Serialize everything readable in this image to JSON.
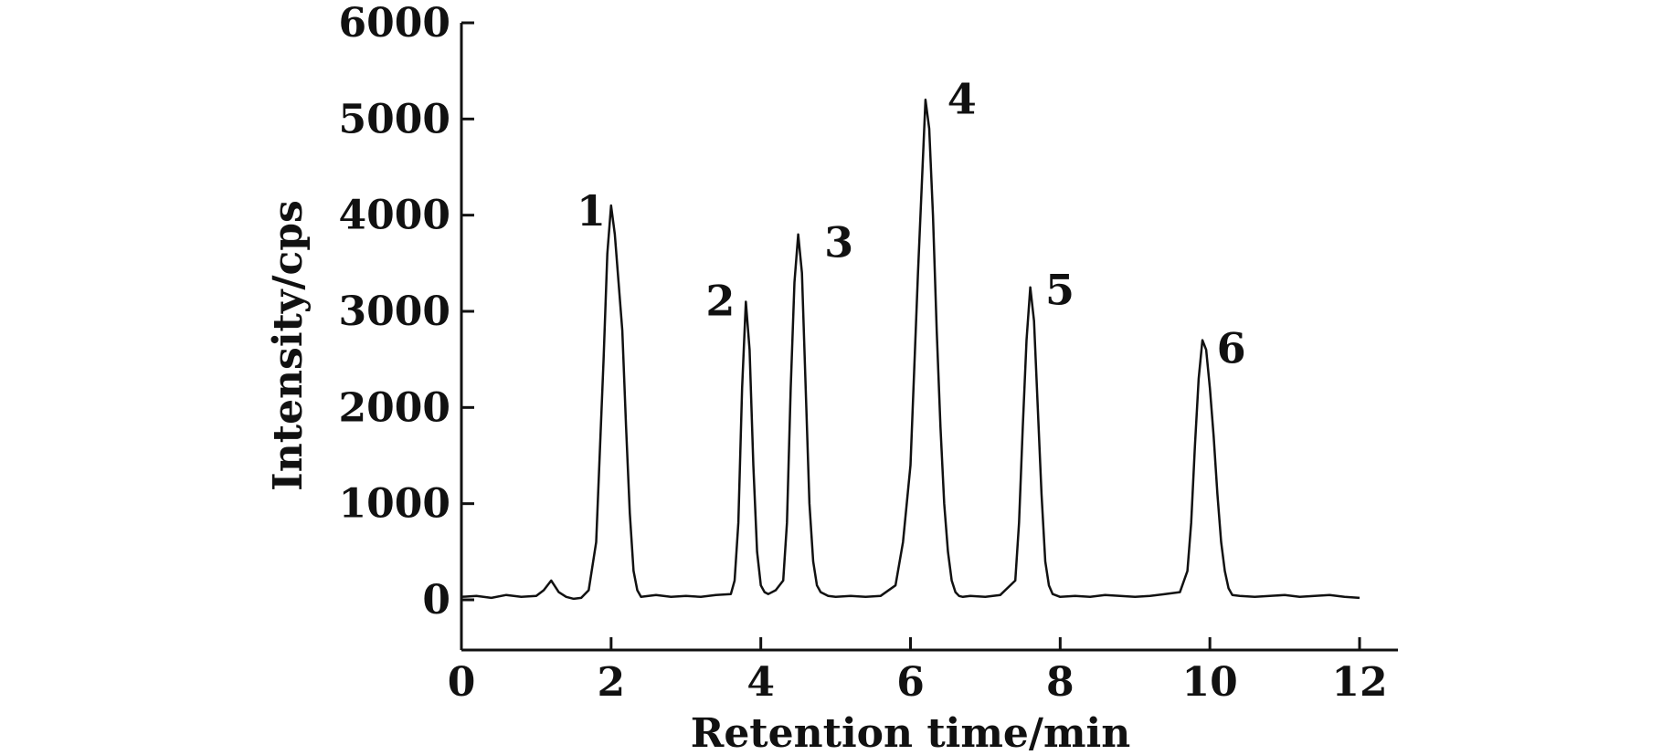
{
  "chart_data": {
    "type": "line",
    "title": "",
    "xlabel": "Retention time/min",
    "ylabel": "Intensity/cps",
    "xlim": [
      0,
      12.5
    ],
    "ylim": [
      -500,
      6000
    ],
    "xticks": [
      0,
      2,
      4,
      6,
      8,
      10,
      12
    ],
    "yticks": [
      0,
      1000,
      2000,
      3000,
      4000,
      5000,
      6000
    ],
    "xtick_labels": [
      "0",
      "2",
      "4",
      "6",
      "8",
      "10",
      "12"
    ],
    "ytick_labels": [
      "0",
      "1000",
      "2000",
      "3000",
      "4000",
      "5000",
      "6000"
    ],
    "grid": false,
    "series": [
      {
        "x": [
          0,
          0.2,
          0.4,
          0.6,
          0.8,
          1.0,
          1.1,
          1.2,
          1.3,
          1.4,
          1.5,
          1.6,
          1.7,
          1.8,
          1.9,
          1.95,
          2.0,
          2.05,
          2.1,
          2.15,
          2.2,
          2.25,
          2.3,
          2.35,
          2.4,
          2.5,
          2.6,
          2.8,
          3.0,
          3.2,
          3.4,
          3.6,
          3.65,
          3.7,
          3.75,
          3.8,
          3.85,
          3.9,
          3.95,
          4.0,
          4.05,
          4.1,
          4.2,
          4.3,
          4.35,
          4.4,
          4.45,
          4.5,
          4.55,
          4.6,
          4.65,
          4.7,
          4.75,
          4.8,
          4.9,
          5.0,
          5.2,
          5.4,
          5.6,
          5.8,
          5.9,
          6.0,
          6.05,
          6.1,
          6.15,
          6.2,
          6.25,
          6.3,
          6.35,
          6.4,
          6.45,
          6.5,
          6.55,
          6.6,
          6.65,
          6.7,
          6.8,
          7.0,
          7.2,
          7.4,
          7.45,
          7.5,
          7.55,
          7.6,
          7.65,
          7.7,
          7.75,
          7.8,
          7.85,
          7.9,
          8.0,
          8.2,
          8.4,
          8.6,
          8.8,
          9.0,
          9.2,
          9.4,
          9.6,
          9.7,
          9.75,
          9.8,
          9.85,
          9.9,
          9.95,
          10.0,
          10.05,
          10.1,
          10.15,
          10.2,
          10.25,
          10.3,
          10.4,
          10.6,
          10.8,
          11.0,
          11.2,
          11.4,
          11.6,
          11.8,
          12.0
        ],
        "y": [
          30,
          40,
          20,
          50,
          30,
          40,
          100,
          200,
          80,
          30,
          10,
          20,
          100,
          600,
          2500,
          3600,
          4100,
          3800,
          3300,
          2800,
          1800,
          900,
          300,
          100,
          30,
          40,
          50,
          30,
          40,
          30,
          50,
          60,
          200,
          800,
          2200,
          3100,
          2600,
          1400,
          500,
          150,
          80,
          60,
          100,
          200,
          800,
          2200,
          3300,
          3800,
          3400,
          2200,
          1000,
          400,
          150,
          80,
          40,
          30,
          40,
          30,
          40,
          150,
          600,
          1400,
          2400,
          3400,
          4300,
          5200,
          4900,
          4000,
          2800,
          1800,
          1000,
          500,
          200,
          80,
          40,
          30,
          40,
          30,
          50,
          200,
          800,
          1800,
          2700,
          3250,
          2900,
          2000,
          1100,
          400,
          150,
          60,
          30,
          40,
          30,
          50,
          40,
          30,
          40,
          60,
          80,
          300,
          800,
          1600,
          2300,
          2700,
          2600,
          2200,
          1700,
          1100,
          600,
          300,
          120,
          50,
          40,
          30,
          40,
          50,
          30,
          40,
          50,
          30,
          20
        ]
      }
    ],
    "annotations": [
      {
        "text": "1",
        "x": 2.1,
        "y": 4130
      },
      {
        "text": "2",
        "x": 3.85,
        "y": 3100
      },
      {
        "text": "3",
        "x": 4.58,
        "y": 3800
      },
      {
        "text": "4",
        "x": 6.32,
        "y": 5200
      },
      {
        "text": "5",
        "x": 7.63,
        "y": 3260
      },
      {
        "text": "6",
        "x": 9.92,
        "y": 2700
      }
    ]
  }
}
